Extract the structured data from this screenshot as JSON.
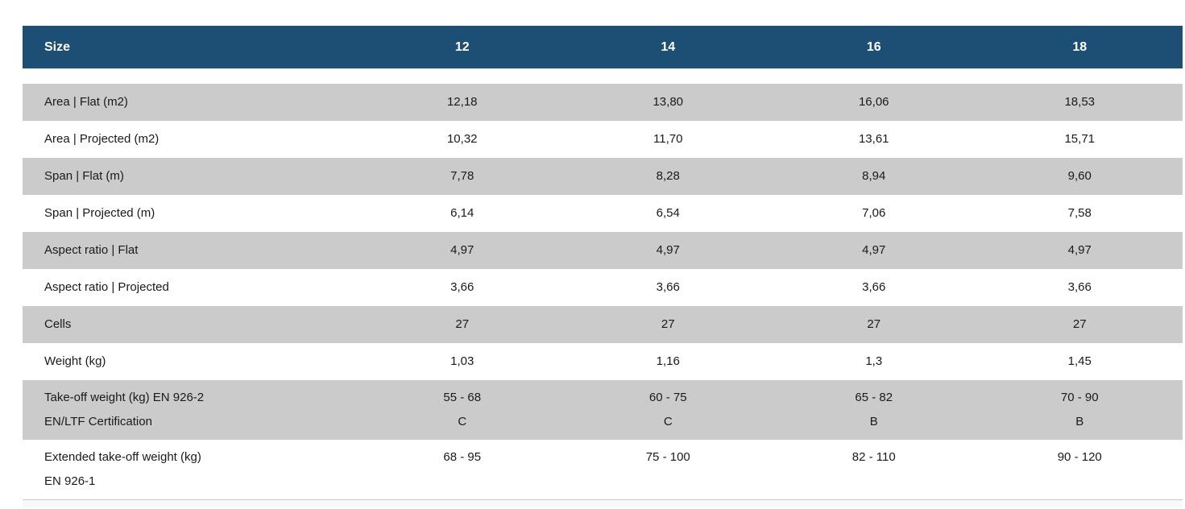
{
  "table": {
    "header": {
      "label": "Size",
      "sizes": [
        "12",
        "14",
        "16",
        "18"
      ]
    },
    "rows": [
      {
        "label": "Area | Flat (m2)",
        "values": [
          "12,18",
          "13,80",
          "16,06",
          "18,53"
        ]
      },
      {
        "label": "Area | Projected (m2)",
        "values": [
          "10,32",
          "11,70",
          "13,61",
          "15,71"
        ]
      },
      {
        "label": "Span | Flat (m)",
        "values": [
          "7,78",
          "8,28",
          "8,94",
          "9,60"
        ]
      },
      {
        "label": "Span | Projected (m)",
        "values": [
          "6,14",
          "6,54",
          "7,06",
          "7,58"
        ]
      },
      {
        "label": "Aspect ratio | Flat",
        "values": [
          "4,97",
          "4,97",
          "4,97",
          "4,97"
        ]
      },
      {
        "label": "Aspect ratio | Projected",
        "values": [
          "3,66",
          "3,66",
          "3,66",
          "3,66"
        ]
      },
      {
        "label": "Cells",
        "values": [
          "27",
          "27",
          "27",
          "27"
        ]
      },
      {
        "label": "Weight (kg)",
        "values": [
          "1,03",
          "1,16",
          "1,3",
          "1,45"
        ]
      },
      {
        "label": "Take-off weight (kg) EN 926-2",
        "label_line2": "EN/LTF Certification",
        "values": [
          "55 - 68",
          "60 - 75",
          "65 - 82",
          "70 - 90"
        ],
        "values_line2": [
          "C",
          "C",
          "B",
          "B"
        ]
      },
      {
        "label": "Extended take-off weight (kg)",
        "label_line2": "EN 926-1",
        "values": [
          "68 - 95",
          "75 - 100",
          "82 - 110",
          "90 - 120"
        ]
      }
    ],
    "colors": {
      "header_bg": "#1d4e74",
      "header_text": "#ffffff",
      "row_alt_bg": "#cbcbcb",
      "body_text": "#1a1a1a"
    }
  }
}
